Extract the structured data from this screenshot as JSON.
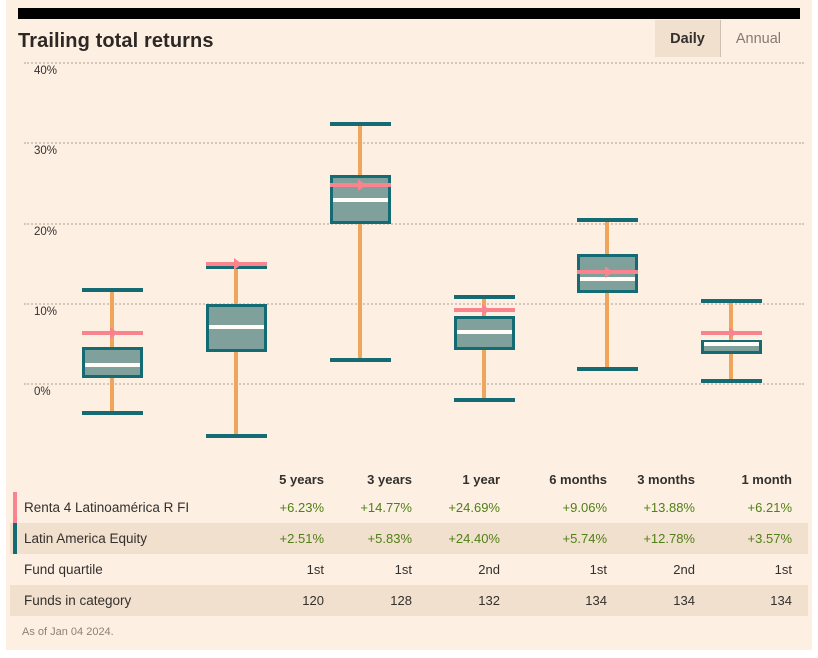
{
  "header": {
    "title": "Trailing total returns",
    "tabs": [
      {
        "label": "Daily",
        "active": true
      },
      {
        "label": "Annual",
        "active": false
      }
    ]
  },
  "chart_data": {
    "type": "boxplot",
    "title": "Trailing total returns",
    "categories": [
      "5 years",
      "3 years",
      "1 year",
      "6 months",
      "3 months",
      "1 month"
    ],
    "y_axis": {
      "tick_labels": [
        "40%",
        "30%",
        "20%",
        "10%",
        "0%"
      ],
      "tick_values": [
        40,
        30,
        20,
        10,
        0
      ],
      "unit": "%",
      "grid": "dotted",
      "ylim": [
        -7,
        41
      ]
    },
    "marker_series": {
      "name": "Renta 4 Latinoamérica R FI",
      "values": [
        6.23,
        14.77,
        24.69,
        9.06,
        13.88,
        6.21
      ]
    },
    "boxes": [
      {
        "category": "5 years",
        "whisker_high": 11.6,
        "q3": 4.5,
        "median": 2.2,
        "q1": 0.6,
        "whisker_low": -3.8,
        "fund_marker": 6.23
      },
      {
        "category": "3 years",
        "whisker_high": 14.5,
        "q3": 9.8,
        "median": 7.0,
        "q1": 3.8,
        "whisker_low": -6.6,
        "fund_marker": 14.77
      },
      {
        "category": "1 year",
        "whisker_high": 32.3,
        "q3": 25.9,
        "median": 22.8,
        "q1": 19.8,
        "whisker_low": 2.9,
        "fund_marker": 24.69
      },
      {
        "category": "6 months",
        "whisker_high": 10.7,
        "q3": 8.4,
        "median": 6.4,
        "q1": 4.1,
        "whisker_low": -2.1,
        "fund_marker": 9.06
      },
      {
        "category": "3 months",
        "whisker_high": 20.3,
        "q3": 16.1,
        "median": 13.0,
        "q1": 11.2,
        "whisker_low": 1.7,
        "fund_marker": 13.88
      },
      {
        "category": "1 month",
        "whisker_high": 10.2,
        "q3": 5.4,
        "median": 4.8,
        "q1": 3.6,
        "whisker_low": 0.3,
        "fund_marker": 6.21
      }
    ]
  },
  "table": {
    "column_headers": [
      "5 years",
      "3 years",
      "1 year",
      "6 months",
      "3 months",
      "1 month"
    ],
    "rows": [
      {
        "label": "Renta 4 Latinoamérica R FI",
        "accent": "pink",
        "shaded": false,
        "value_style": "green",
        "values": [
          "+6.23%",
          "+14.77%",
          "+24.69%",
          "+9.06%",
          "+13.88%",
          "+6.21%"
        ]
      },
      {
        "label": "Latin America Equity",
        "accent": "teal",
        "shaded": true,
        "value_style": "green",
        "values": [
          "+2.51%",
          "+5.83%",
          "+24.40%",
          "+5.74%",
          "+12.78%",
          "+3.57%"
        ]
      },
      {
        "label": "Fund quartile",
        "accent": null,
        "shaded": false,
        "value_style": "plain",
        "values": [
          "1st",
          "1st",
          "2nd",
          "1st",
          "2nd",
          "1st"
        ]
      },
      {
        "label": "Funds in category",
        "accent": null,
        "shaded": true,
        "value_style": "plain",
        "values": [
          "120",
          "128",
          "132",
          "134",
          "134",
          "134"
        ]
      }
    ]
  },
  "footer": {
    "as_of_text": "As of Jan 04 2024."
  },
  "colors": {
    "background": "#FDF0E3",
    "shaded_row": "#F2E0CE",
    "teal": "#156B74",
    "box_fill": "#7FA09B",
    "stem_orange": "#F0A55D",
    "fund_pink": "#F9848E",
    "median_white": "#FFFDF6",
    "positive_green": "#508016",
    "text_dark": "#33302E"
  }
}
